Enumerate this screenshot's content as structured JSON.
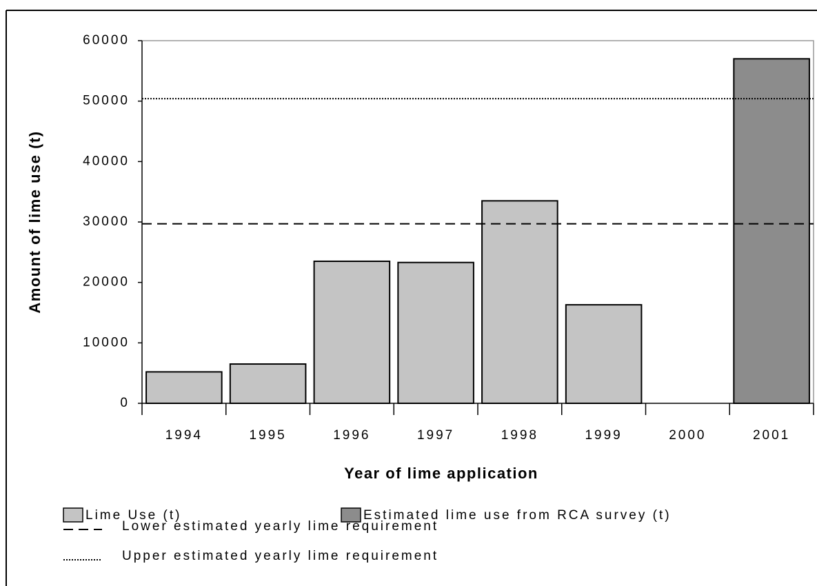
{
  "chart_data": {
    "type": "bar",
    "x_label": "Year of lime application",
    "y_label": "Amount of lime use (t)",
    "categories": [
      "1994",
      "1995",
      "1996",
      "1997",
      "1998",
      "1999",
      "2000",
      "2001"
    ],
    "series": [
      {
        "name": "Lime Use (t)",
        "color": "#c4c4c4",
        "values": [
          5200,
          6500,
          23500,
          23300,
          33500,
          16300,
          null,
          null
        ]
      },
      {
        "name": "Estimated lime use from RCA survey (t)",
        "color": "#8c8c8c",
        "values": [
          null,
          null,
          null,
          null,
          null,
          null,
          null,
          57000
        ]
      }
    ],
    "reference_lines": [
      {
        "name": "Lower estimated yearly lime requirement",
        "value": 29700,
        "dash": "14 8"
      },
      {
        "name": "Upper estimated yearly lime requirement",
        "value": 50400,
        "dash": "2 2"
      }
    ],
    "ylim": [
      0,
      60000
    ],
    "yticks": [
      0,
      10000,
      20000,
      30000,
      40000,
      50000,
      60000
    ]
  }
}
